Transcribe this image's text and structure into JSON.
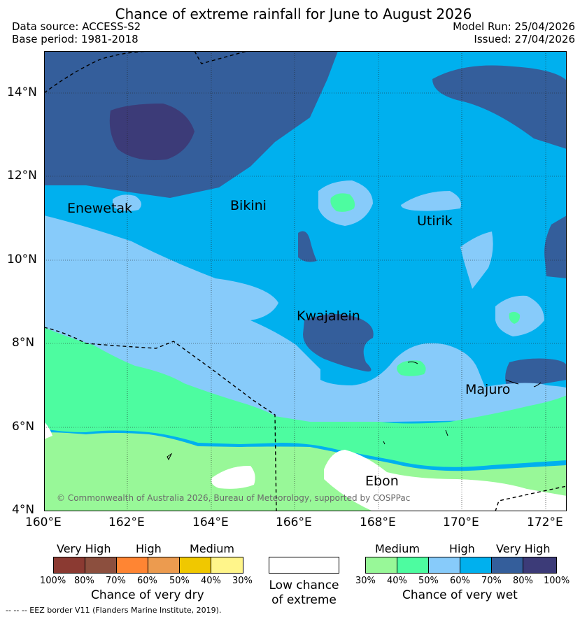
{
  "header": {
    "title": "Chance of extreme rainfall for June to August 2026",
    "data_source": "Data source: ACCESS-S2",
    "base_period": "Base period: 1981-2018",
    "model_run": "Model Run: 25/04/2026",
    "issued": "Issued: 27/04/2026"
  },
  "map": {
    "lat_labels": [
      "14°N",
      "12°N",
      "10°N",
      "8°N",
      "6°N",
      "4°N"
    ],
    "lon_labels": [
      "160°E",
      "162°E",
      "164°E",
      "166°E",
      "168°E",
      "170°E",
      "172°E"
    ],
    "places": [
      "Enewetak",
      "Bikini",
      "Utirik",
      "Kwajalein",
      "Majuro",
      "Ebon"
    ],
    "copyright": "© Commonwealth of Australia 2026, Bureau of Meteorology, supported by COSPPac"
  },
  "legend": {
    "dry": {
      "headers": [
        "Very High",
        "High",
        "Medium"
      ],
      "ticks": [
        "100%",
        "80%",
        "70%",
        "60%",
        "50%",
        "40%",
        "30%"
      ],
      "colors": [
        "#8b3a32",
        "#8c4f3e",
        "#ff8533",
        "#ec9b4f",
        "#f0c800",
        "#fff58a"
      ],
      "caption": "Chance of very dry"
    },
    "low": {
      "caption_line1": "Low chance",
      "caption_line2": "of extreme"
    },
    "wet": {
      "headers": [
        "Medium",
        "High",
        "Very High"
      ],
      "ticks": [
        "30%",
        "40%",
        "50%",
        "60%",
        "70%",
        "80%",
        "100%"
      ],
      "colors": [
        "#98f898",
        "#4dfca0",
        "#87cbfa",
        "#00b0ee",
        "#345e9b",
        "#3c3b78"
      ],
      "caption": "Chance of very wet"
    },
    "eez_note": "-- -- -- EEZ border V11 (Flanders Marine Institute, 2019)."
  }
}
